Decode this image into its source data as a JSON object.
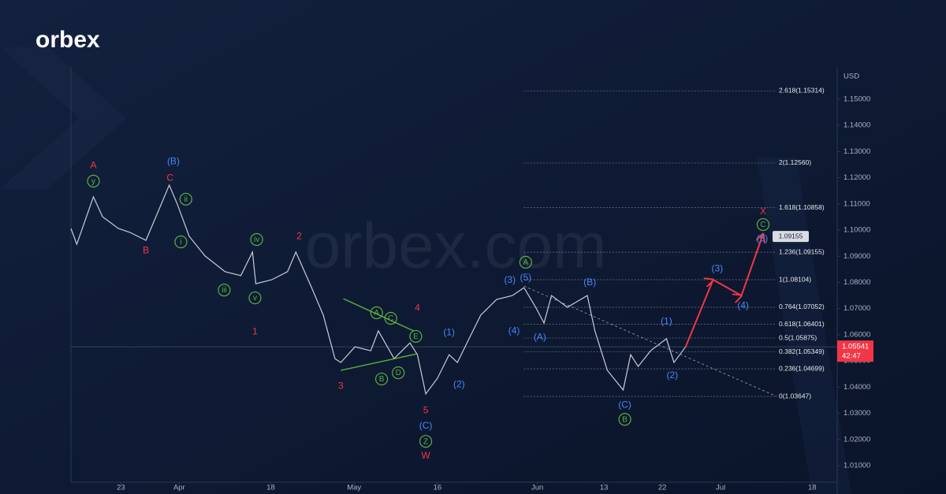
{
  "brand": {
    "logo": "orbex",
    "watermark": "orbex.com"
  },
  "chart_data": {
    "type": "line",
    "y_axis_label": "USD",
    "xlim": [
      0,
      92
    ],
    "ylim": [
      1.0037,
      1.1623
    ],
    "xticks": [
      {
        "value": 6,
        "label": "23"
      },
      {
        "value": 13,
        "label": "Apr"
      },
      {
        "value": 24,
        "label": "18"
      },
      {
        "value": 34,
        "label": "May"
      },
      {
        "value": 44,
        "label": "16"
      },
      {
        "value": 56,
        "label": "Jun"
      },
      {
        "value": 64,
        "label": "13"
      },
      {
        "value": 71,
        "label": "22"
      },
      {
        "value": 78,
        "label": "Jul"
      },
      {
        "value": 89,
        "label": "18"
      }
    ],
    "yticks": [
      {
        "value": 1.01,
        "label": "1.01000"
      },
      {
        "value": 1.02,
        "label": "1.02000"
      },
      {
        "value": 1.03,
        "label": "1.03000"
      },
      {
        "value": 1.04,
        "label": "1.04000"
      },
      {
        "value": 1.05,
        "label": "1.05000"
      },
      {
        "value": 1.06,
        "label": "1.06000"
      },
      {
        "value": 1.07,
        "label": "1.07000"
      },
      {
        "value": 1.08,
        "label": "1.08000"
      },
      {
        "value": 1.09,
        "label": "1.09000"
      },
      {
        "value": 1.1,
        "label": "1.10000"
      },
      {
        "value": 1.11,
        "label": "1.11000"
      },
      {
        "value": 1.12,
        "label": "1.12000"
      },
      {
        "value": 1.13,
        "label": "1.13000"
      },
      {
        "value": 1.14,
        "label": "1.14000"
      },
      {
        "value": 1.15,
        "label": "1.15000"
      }
    ],
    "series": [
      {
        "color": "#c9ccd6",
        "x": [
          0,
          0.7,
          2.7,
          3.8,
          5.7,
          7.1,
          9.0,
          10.4,
          11.8,
          12.8,
          14.2,
          16.1,
          18.5,
          20.4,
          21.8,
          22.2,
          24.1,
          26.0,
          27.0,
          28.9,
          30.3,
          31.7,
          32.4,
          34.1,
          36.0,
          36.9,
          38.8,
          40.7,
          41.6,
          42.6,
          44.0,
          45.4,
          46.4,
          47.8,
          49.2,
          51.1,
          53.0,
          54.4,
          55.8,
          56.8,
          57.7,
          59.6,
          62.0,
          62.9,
          64.4,
          66.3,
          67.2,
          68.1,
          69.6,
          71.5,
          72.4,
          73.8
        ],
        "values": [
          1.1006,
          1.0946,
          1.1127,
          1.1051,
          1.1006,
          1.0991,
          1.0961,
          1.1066,
          1.1172,
          1.1097,
          1.0976,
          1.0901,
          1.0841,
          1.0826,
          1.0916,
          1.0795,
          1.081,
          1.0841,
          1.0916,
          1.078,
          1.0675,
          1.0509,
          1.0494,
          1.0554,
          1.0539,
          1.0615,
          1.0509,
          1.0569,
          1.0524,
          1.0374,
          1.0434,
          1.0524,
          1.0494,
          1.0585,
          1.0675,
          1.0735,
          1.075,
          1.078,
          1.0705,
          1.0645,
          1.075,
          1.0705,
          1.075,
          1.0615,
          1.0464,
          1.0389,
          1.0524,
          1.0479,
          1.0539,
          1.0585,
          1.0494,
          1.0554
        ]
      }
    ],
    "last_price": 1.05541,
    "countdown": "42:47",
    "target_tag": 1.09155,
    "fib_from_x": 54.4,
    "fib_levels": [
      {
        "value": 1.15314,
        "label": "2.618(1.15314)"
      },
      {
        "value": 1.1256,
        "label": "2(1.12560)"
      },
      {
        "value": 1.10858,
        "label": "1.618(1.10858)"
      },
      {
        "value": 1.09155,
        "label": "1.236(1.09155)"
      },
      {
        "value": 1.08104,
        "label": "1(1.08104)"
      },
      {
        "value": 1.07052,
        "label": "0.764(1.07052)"
      },
      {
        "value": 1.06401,
        "label": "0.618(1.06401)"
      },
      {
        "value": 1.05875,
        "label": "0.5(1.05875)"
      },
      {
        "value": 1.05349,
        "label": "0.382(1.05349)"
      },
      {
        "value": 1.04699,
        "label": "0.236(1.04699)"
      },
      {
        "value": 1.03647,
        "label": "0(1.03647)"
      }
    ],
    "lines": [
      {
        "color": "#9aa3b5",
        "dashed": true,
        "arrows": false,
        "x": [
          54.4,
          84.7
        ],
        "values": [
          1.0786,
          1.0365
        ]
      },
      {
        "color": "#5cb040",
        "dashed": false,
        "arrows": false,
        "x": [
          32.7,
          41.2
        ],
        "values": [
          1.0738,
          1.0614
        ]
      },
      {
        "color": "#5cb040",
        "dashed": false,
        "arrows": false,
        "x": [
          32.4,
          41.5
        ],
        "values": [
          1.0464,
          1.0527
        ]
      },
      {
        "color": "#f23645",
        "dashed": false,
        "arrows": true,
        "x": [
          73.8,
          77.1,
          80.5,
          83.1
        ],
        "values": [
          1.0554,
          1.081,
          1.075,
          1.0985
        ]
      }
    ],
    "annotations": [
      {
        "text": "A",
        "color": "#f23645",
        "circled": false,
        "x": 2.7,
        "y": 1.1247
      },
      {
        "text": "B",
        "color": "#f23645",
        "circled": false,
        "x": 9.0,
        "y": 1.0922
      },
      {
        "text": "C",
        "color": "#f23645",
        "circled": false,
        "x": 11.9,
        "y": 1.1199
      },
      {
        "text": "2",
        "color": "#f23645",
        "circled": false,
        "x": 27.4,
        "y": 1.0976
      },
      {
        "text": "1",
        "color": "#f23645",
        "circled": false,
        "x": 22.1,
        "y": 1.0612
      },
      {
        "text": "4",
        "color": "#f23645",
        "circled": false,
        "x": 41.6,
        "y": 1.0702
      },
      {
        "text": "3",
        "color": "#f23645",
        "circled": false,
        "x": 32.4,
        "y": 1.0404
      },
      {
        "text": "5",
        "color": "#f23645",
        "circled": false,
        "x": 42.6,
        "y": 1.0311
      },
      {
        "text": "W",
        "color": "#f23645",
        "circled": false,
        "x": 42.6,
        "y": 1.0139
      },
      {
        "text": "X",
        "color": "#f23645",
        "circled": false,
        "x": 83.1,
        "y": 1.1072
      },
      {
        "text": "(B)",
        "color": "#4a86f7",
        "circled": false,
        "x": 12.3,
        "y": 1.1262
      },
      {
        "text": "(C)",
        "color": "#4a86f7",
        "circled": false,
        "x": 42.6,
        "y": 1.0253
      },
      {
        "text": "(1)",
        "color": "#4a86f7",
        "circled": false,
        "x": 45.4,
        "y": 1.0609
      },
      {
        "text": "(2)",
        "color": "#4a86f7",
        "circled": false,
        "x": 46.6,
        "y": 1.041
      },
      {
        "text": "(3)",
        "color": "#4a86f7",
        "circled": false,
        "x": 52.7,
        "y": 1.081
      },
      {
        "text": "(5)",
        "color": "#4a86f7",
        "circled": false,
        "x": 54.6,
        "y": 1.0819
      },
      {
        "text": "(4)",
        "color": "#4a86f7",
        "circled": false,
        "x": 53.2,
        "y": 1.0615
      },
      {
        "text": "(A)",
        "color": "#4a86f7",
        "circled": false,
        "x": 56.3,
        "y": 1.0591
      },
      {
        "text": "(B)",
        "color": "#4a86f7",
        "circled": false,
        "x": 62.3,
        "y": 1.0801
      },
      {
        "text": "(C)",
        "color": "#4a86f7",
        "circled": false,
        "x": 66.5,
        "y": 1.0332
      },
      {
        "text": "(1)",
        "color": "#4a86f7",
        "circled": false,
        "x": 71.5,
        "y": 1.0651
      },
      {
        "text": "(2)",
        "color": "#4a86f7",
        "circled": false,
        "x": 72.2,
        "y": 1.0446
      },
      {
        "text": "(3)",
        "color": "#4a86f7",
        "circled": false,
        "x": 77.6,
        "y": 1.0853
      },
      {
        "text": "(4)",
        "color": "#4a86f7",
        "circled": false,
        "x": 80.7,
        "y": 1.0711
      },
      {
        "text": "(5)",
        "color": "#4a86f7",
        "circled": false,
        "x": 83.0,
        "y": 1.0967
      },
      {
        "text": "y",
        "color": "#5cb040",
        "circled": true,
        "x": 2.7,
        "y": 1.1187
      },
      {
        "text": "ii",
        "color": "#5cb040",
        "circled": true,
        "x": 13.8,
        "y": 1.1118
      },
      {
        "text": "i",
        "color": "#5cb040",
        "circled": true,
        "x": 13.2,
        "y": 1.0955
      },
      {
        "text": "iv",
        "color": "#5cb040",
        "circled": true,
        "x": 22.3,
        "y": 1.0964
      },
      {
        "text": "iii",
        "color": "#5cb040",
        "circled": true,
        "x": 18.4,
        "y": 1.0771
      },
      {
        "text": "v",
        "color": "#5cb040",
        "circled": true,
        "x": 22.1,
        "y": 1.0741
      },
      {
        "text": "A",
        "color": "#5cb040",
        "circled": true,
        "x": 36.7,
        "y": 1.0684
      },
      {
        "text": "C",
        "color": "#5cb040",
        "circled": true,
        "x": 38.4,
        "y": 1.0663
      },
      {
        "text": "E",
        "color": "#5cb040",
        "circled": true,
        "x": 41.4,
        "y": 1.0594
      },
      {
        "text": "B",
        "color": "#5cb040",
        "circled": true,
        "x": 37.3,
        "y": 1.0431
      },
      {
        "text": "D",
        "color": "#5cb040",
        "circled": true,
        "x": 39.3,
        "y": 1.0455
      },
      {
        "text": "Z",
        "color": "#5cb040",
        "circled": true,
        "x": 42.6,
        "y": 1.0193
      },
      {
        "text": "A",
        "color": "#5cb040",
        "circled": true,
        "x": 54.6,
        "y": 1.0877
      },
      {
        "text": "B",
        "color": "#5cb040",
        "circled": true,
        "x": 66.5,
        "y": 1.0277
      },
      {
        "text": "C",
        "color": "#5cb040",
        "circled": true,
        "x": 83.1,
        "y": 1.1021
      }
    ]
  }
}
